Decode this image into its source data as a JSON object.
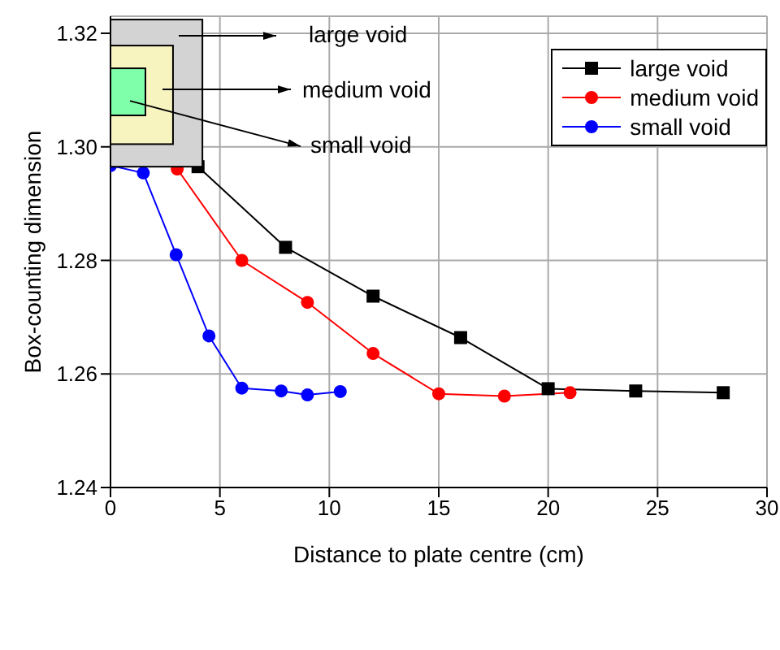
{
  "chart_data": {
    "type": "line",
    "xlabel": "Distance to plate centre (cm)",
    "ylabel": "Box-counting dimension",
    "xlim": [
      0,
      30
    ],
    "xticks": [
      0,
      5,
      10,
      15,
      20,
      25,
      30
    ],
    "ylim": [
      1.24,
      1.323
    ],
    "yticks": [
      {
        "value": 1.24,
        "label": "1.24"
      },
      {
        "value": 1.26,
        "label": "1.26"
      },
      {
        "value": 1.28,
        "label": "1.28"
      },
      {
        "value": 1.3,
        "label": "1.30"
      },
      {
        "value": 1.32,
        "label": "1.32"
      }
    ],
    "grid": true,
    "legend": "top right",
    "line_style": "solid",
    "annotations": [
      "large void",
      "medium void",
      "small void"
    ],
    "series": [
      {
        "name": "large void",
        "color": "#000000",
        "marker": "square",
        "x": [
          4,
          8,
          12,
          16,
          20,
          24,
          28
        ],
        "values": [
          1.2965,
          1.2823,
          1.2737,
          1.2664,
          1.2574,
          1.257,
          1.2567
        ]
      },
      {
        "name": "medium void",
        "color": "#ff0000",
        "marker": "circle",
        "x": [
          3.05,
          6,
          9,
          12,
          15,
          18,
          21
        ],
        "values": [
          1.2961,
          1.28,
          1.2726,
          1.2636,
          1.2565,
          1.2561,
          1.2567
        ]
      },
      {
        "name": "small void",
        "color": "#0000ff",
        "marker": "circle",
        "x": [
          0,
          1.5,
          3,
          4.5,
          6,
          7.8,
          9,
          10.5
        ],
        "values": [
          1.2967,
          1.2954,
          1.281,
          1.2667,
          1.2575,
          1.257,
          1.2563,
          1.2569
        ]
      }
    ]
  }
}
